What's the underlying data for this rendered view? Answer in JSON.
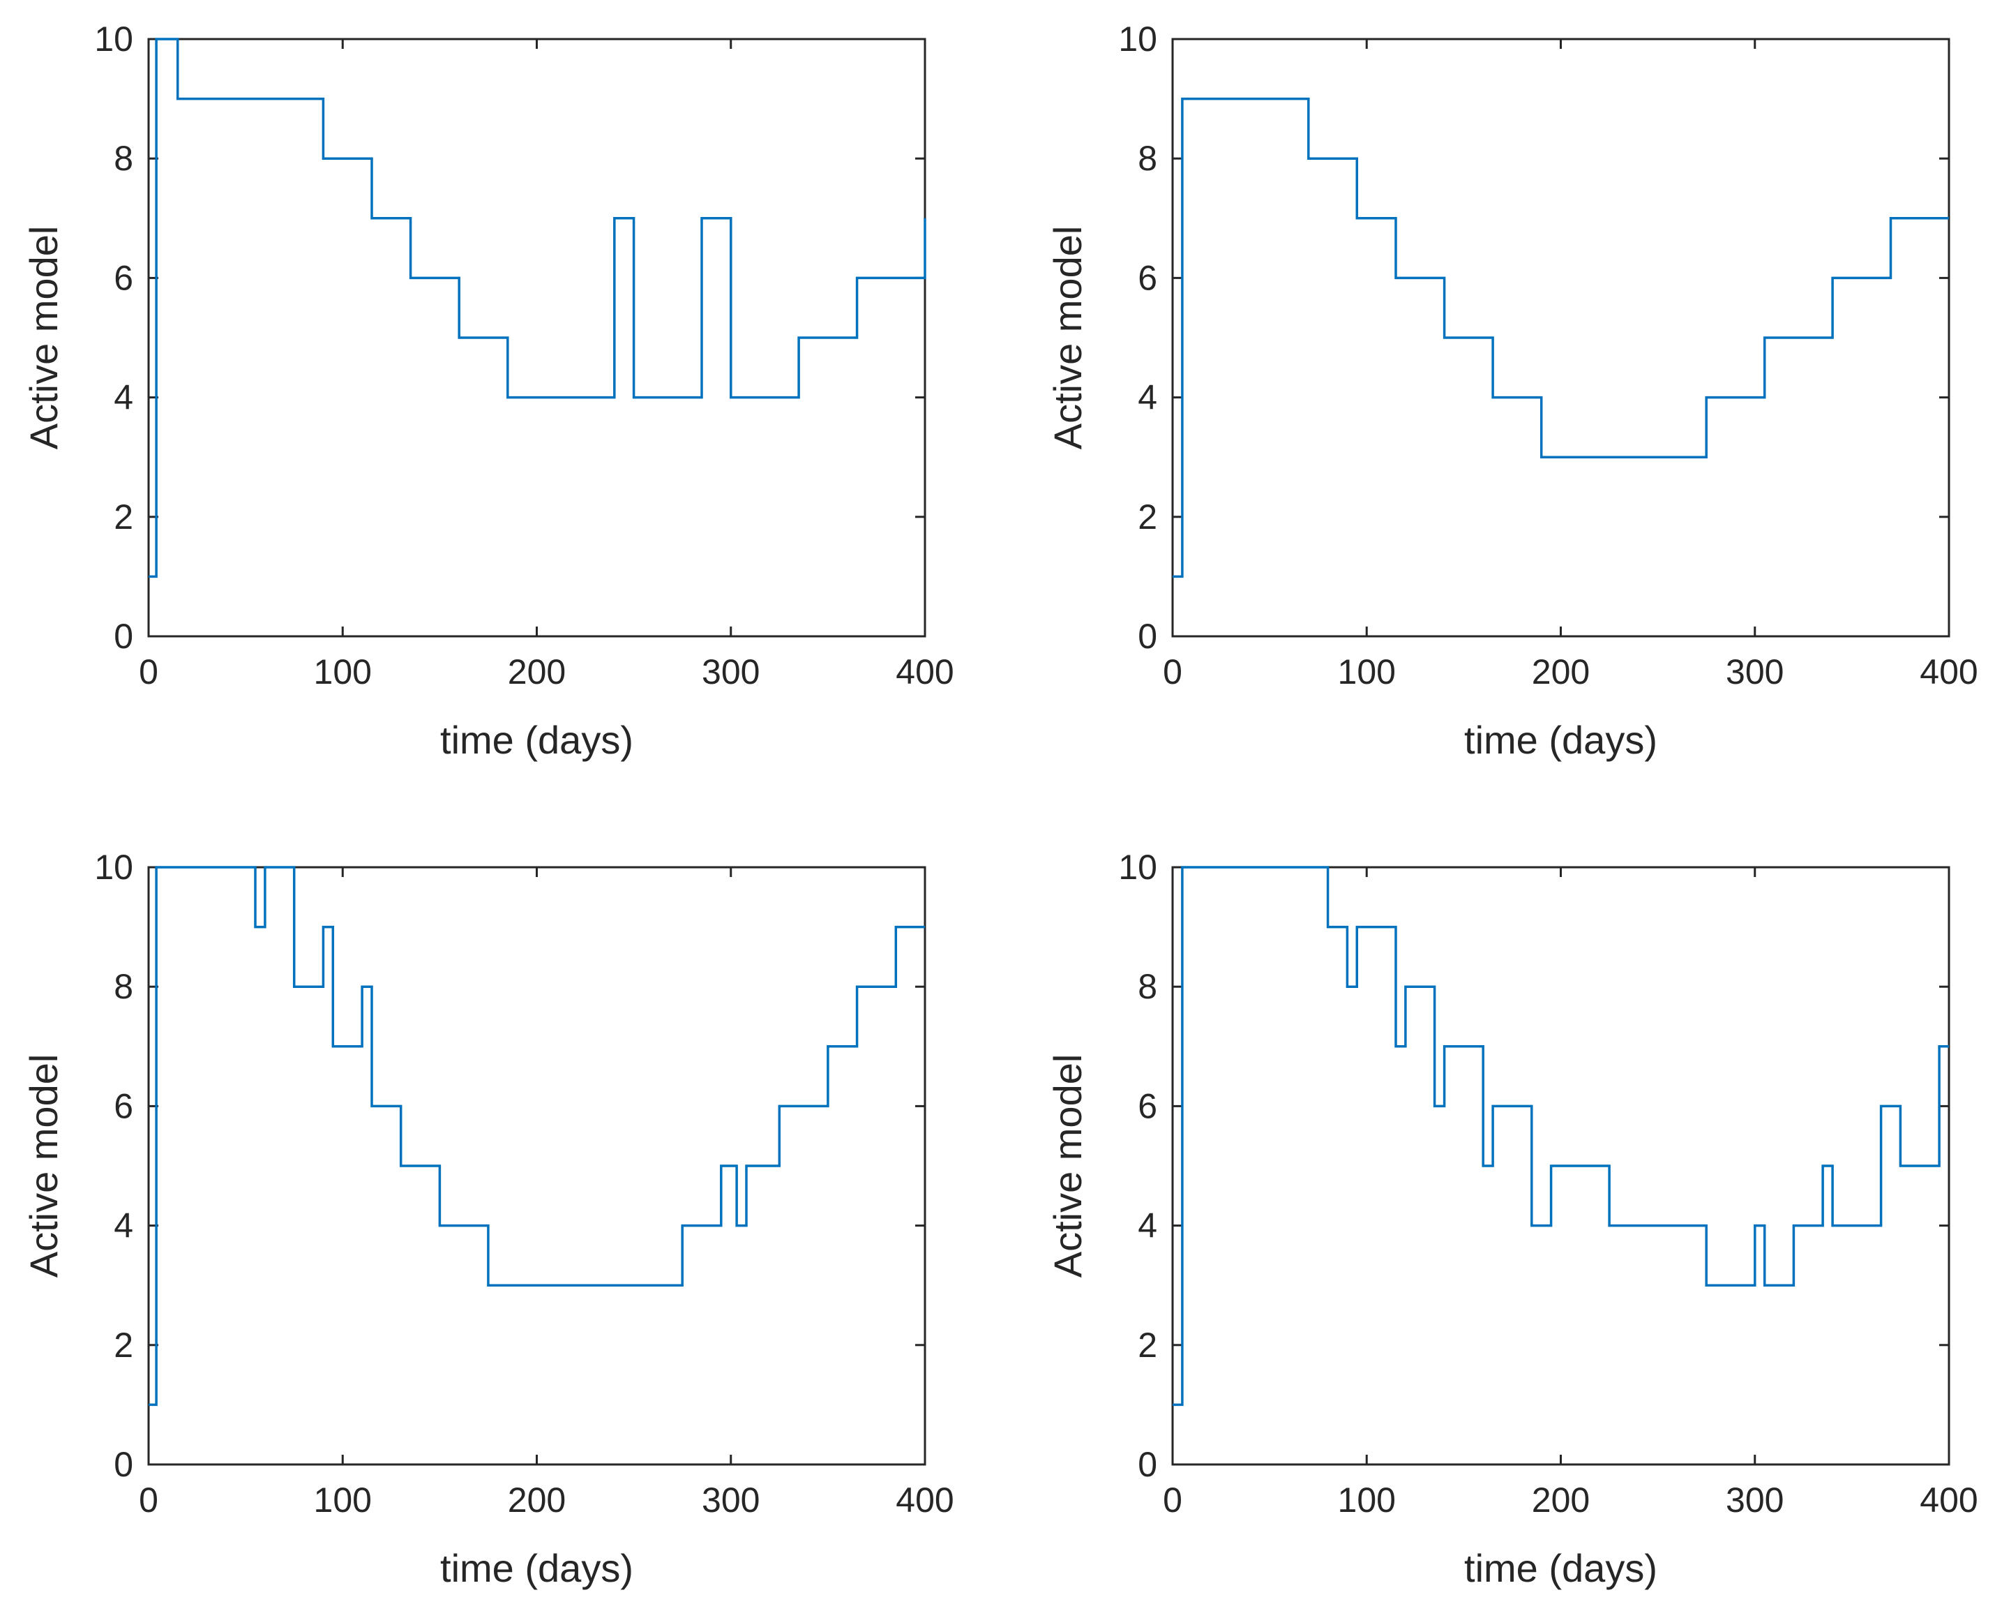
{
  "colors": {
    "series": "#0072BD",
    "axis": "#262626",
    "background": "#ffffff"
  },
  "chart_data": [
    {
      "type": "line",
      "title": "",
      "xlabel": "time (days)",
      "ylabel": "Active model",
      "xlim": [
        0,
        400
      ],
      "ylim": [
        0,
        10
      ],
      "xticks": [
        "0",
        "100",
        "200",
        "300",
        "400"
      ],
      "yticks": [
        "0",
        "2",
        "4",
        "6",
        "8",
        "10"
      ],
      "series": [
        {
          "name": "active model",
          "step": true,
          "x": [
            0,
            4,
            15,
            90,
            115,
            135,
            160,
            185,
            240,
            250,
            285,
            300,
            335,
            365,
            400
          ],
          "y": [
            1,
            10,
            9,
            8,
            7,
            6,
            5,
            4,
            7,
            4,
            7,
            4,
            5,
            6,
            7
          ]
        }
      ]
    },
    {
      "type": "line",
      "title": "",
      "xlabel": "time (days)",
      "ylabel": "Active model",
      "xlim": [
        0,
        400
      ],
      "ylim": [
        0,
        10
      ],
      "xticks": [
        "0",
        "100",
        "200",
        "300",
        "400"
      ],
      "yticks": [
        "0",
        "2",
        "4",
        "6",
        "8",
        "10"
      ],
      "series": [
        {
          "name": "active model",
          "step": true,
          "x": [
            0,
            5,
            70,
            95,
            115,
            140,
            165,
            190,
            275,
            305,
            340,
            370
          ],
          "y": [
            1,
            9,
            8,
            7,
            6,
            5,
            4,
            3,
            4,
            5,
            6,
            7
          ]
        }
      ]
    },
    {
      "type": "line",
      "title": "",
      "xlabel": "time (days)",
      "ylabel": "Active model",
      "xlim": [
        0,
        400
      ],
      "ylim": [
        0,
        10
      ],
      "xticks": [
        "0",
        "100",
        "200",
        "300",
        "400"
      ],
      "yticks": [
        "0",
        "2",
        "4",
        "6",
        "8",
        "10"
      ],
      "series": [
        {
          "name": "active model",
          "step": true,
          "x": [
            0,
            4,
            55,
            60,
            75,
            90,
            95,
            110,
            115,
            130,
            150,
            175,
            275,
            295,
            303,
            308,
            325,
            350,
            365,
            385
          ],
          "y": [
            1,
            10,
            9,
            10,
            8,
            9,
            7,
            8,
            6,
            5,
            4,
            3,
            4,
            5,
            4,
            5,
            6,
            7,
            8,
            9
          ]
        }
      ]
    },
    {
      "type": "line",
      "title": "",
      "xlabel": "time (days)",
      "ylabel": "Active model",
      "xlim": [
        0,
        400
      ],
      "ylim": [
        0,
        10
      ],
      "xticks": [
        "0",
        "100",
        "200",
        "300",
        "400"
      ],
      "yticks": [
        "0",
        "2",
        "4",
        "6",
        "8",
        "10"
      ],
      "series": [
        {
          "name": "active model",
          "step": true,
          "x": [
            0,
            5,
            80,
            90,
            95,
            115,
            120,
            135,
            140,
            160,
            165,
            185,
            195,
            225,
            275,
            300,
            305,
            320,
            335,
            340,
            365,
            375,
            395
          ],
          "y": [
            1,
            10,
            9,
            8,
            9,
            7,
            8,
            6,
            7,
            5,
            6,
            4,
            5,
            4,
            3,
            4,
            3,
            4,
            5,
            4,
            6,
            5,
            7
          ]
        }
      ]
    }
  ]
}
